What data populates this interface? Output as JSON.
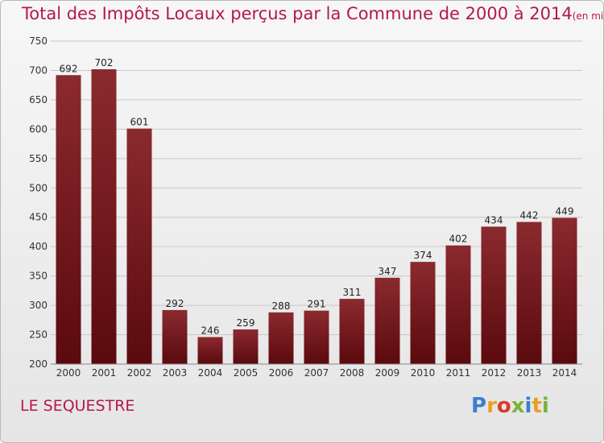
{
  "chart_data": {
    "type": "bar",
    "title": "Total des Impôts Locaux perçus par la Commune de 2000 à 2014",
    "unit_label": "(en milliers d'€)",
    "categories": [
      "2000",
      "2001",
      "2002",
      "2003",
      "2004",
      "2005",
      "2006",
      "2007",
      "2008",
      "2009",
      "2010",
      "2011",
      "2012",
      "2013",
      "2014"
    ],
    "values": [
      692,
      702,
      601,
      292,
      246,
      259,
      288,
      291,
      311,
      347,
      374,
      402,
      434,
      442,
      449
    ],
    "ylim": [
      200,
      750
    ],
    "yticks": [
      200,
      250,
      300,
      350,
      400,
      450,
      500,
      550,
      600,
      650,
      700,
      750
    ],
    "xlabel": "",
    "ylabel": "",
    "grid": true,
    "bar_color_top": "#8b2a2f",
    "bar_color_bottom": "#5a0a0e",
    "title_color": "#b5174f"
  },
  "footer": {
    "commune": "LE SEQUESTRE",
    "logo_letters": [
      "P",
      "r",
      "o",
      "x",
      "i",
      "t",
      "i"
    ]
  }
}
